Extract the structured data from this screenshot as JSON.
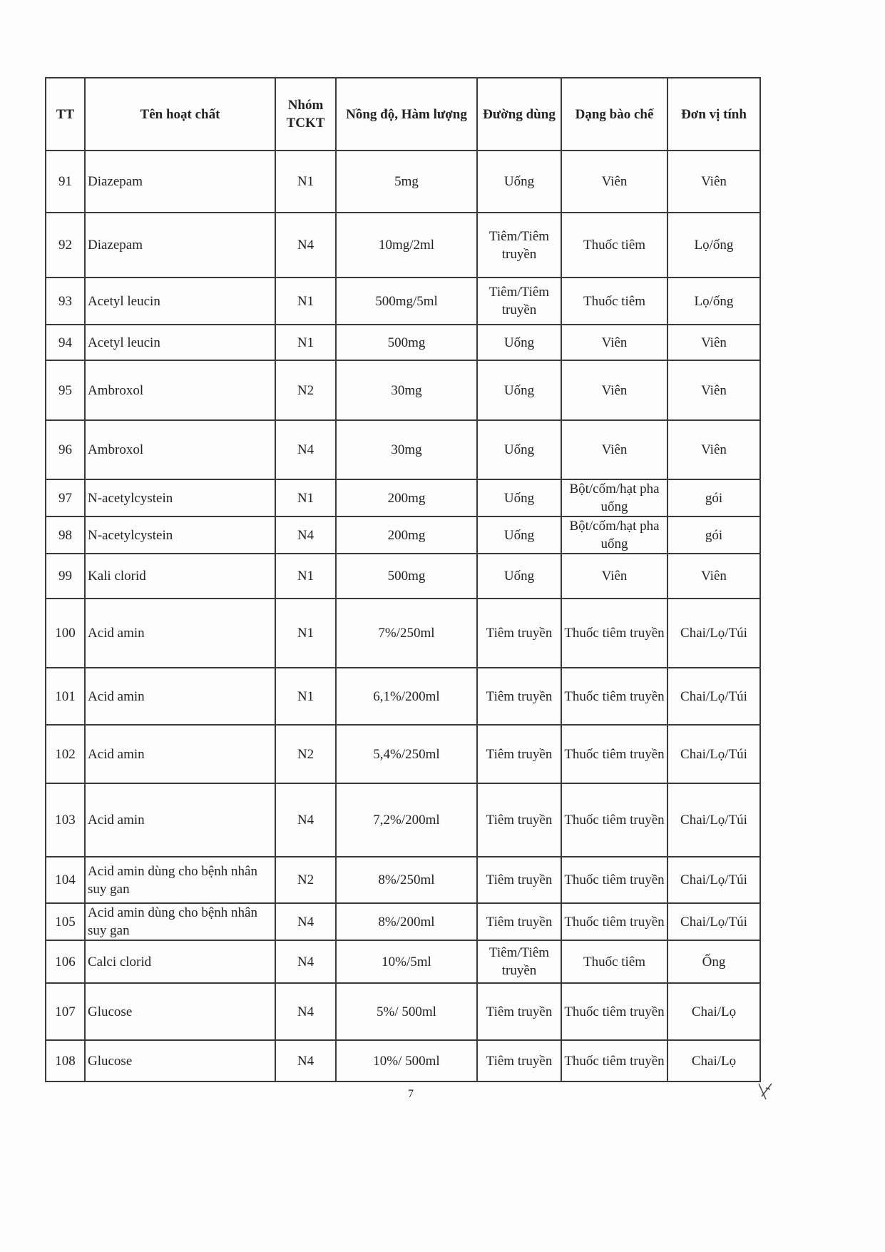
{
  "table": {
    "headers": [
      "TT",
      "Tên hoạt chất",
      "Nhóm TCKT",
      "Nồng độ, Hàm lượng",
      "Đường dùng",
      "Dạng bào chế",
      "Đơn vị tính"
    ],
    "rows": [
      [
        "91",
        "Diazepam",
        "N1",
        "5mg",
        "Uống",
        "Viên",
        "Viên"
      ],
      [
        "92",
        "Diazepam",
        "N4",
        "10mg/2ml",
        "Tiêm/Tiêm truyền",
        "Thuốc tiêm",
        "Lọ/ống"
      ],
      [
        "93",
        "Acetyl leucin",
        "N1",
        "500mg/5ml",
        "Tiêm/Tiêm truyền",
        "Thuốc tiêm",
        "Lọ/ống"
      ],
      [
        "94",
        "Acetyl leucin",
        "N1",
        "500mg",
        "Uống",
        "Viên",
        "Viên"
      ],
      [
        "95",
        "Ambroxol",
        "N2",
        "30mg",
        "Uống",
        "Viên",
        "Viên"
      ],
      [
        "96",
        "Ambroxol",
        "N4",
        "30mg",
        "Uống",
        "Viên",
        "Viên"
      ],
      [
        "97",
        "N-acetylcystein",
        "N1",
        "200mg",
        "Uống",
        "Bột/cốm/hạt pha uống",
        "gói"
      ],
      [
        "98",
        "N-acetylcystein",
        "N4",
        "200mg",
        "Uống",
        "Bột/cốm/hạt pha uống",
        "gói"
      ],
      [
        "99",
        "Kali clorid",
        "N1",
        "500mg",
        "Uống",
        "Viên",
        "Viên"
      ],
      [
        "100",
        "Acid amin",
        "N1",
        "7%/250ml",
        "Tiêm truyền",
        "Thuốc tiêm truyền",
        "Chai/Lọ/Túi"
      ],
      [
        "101",
        "Acid amin",
        "N1",
        "6,1%/200ml",
        "Tiêm truyền",
        "Thuốc tiêm truyền",
        "Chai/Lọ/Túi"
      ],
      [
        "102",
        "Acid amin",
        "N2",
        "5,4%/250ml",
        "Tiêm truyền",
        "Thuốc tiêm truyền",
        "Chai/Lọ/Túi"
      ],
      [
        "103",
        "Acid amin",
        "N4",
        "7,2%/200ml",
        "Tiêm truyền",
        "Thuốc tiêm truyền",
        "Chai/Lọ/Túi"
      ],
      [
        "104",
        "Acid amin dùng cho bệnh nhân suy gan",
        "N2",
        "8%/250ml",
        "Tiêm truyền",
        "Thuốc tiêm truyền",
        "Chai/Lọ/Túi"
      ],
      [
        "105",
        "Acid amin dùng cho bệnh nhân suy gan",
        "N4",
        "8%/200ml",
        "Tiêm truyền",
        "Thuốc tiêm truyền",
        "Chai/Lọ/Túi"
      ],
      [
        "106",
        "Calci clorid",
        "N4",
        "10%/5ml",
        "Tiêm/Tiêm truyền",
        "Thuốc tiêm",
        "Ống"
      ],
      [
        "107",
        "Glucose",
        "N4",
        "5%/ 500ml",
        "Tiêm truyền",
        "Thuốc tiêm truyền",
        "Chai/Lọ"
      ],
      [
        "108",
        "Glucose",
        "N4",
        "10%/ 500ml",
        "Tiêm truyền",
        "Thuốc tiêm truyền",
        "Chai/Lọ"
      ]
    ]
  },
  "page_number": "7"
}
